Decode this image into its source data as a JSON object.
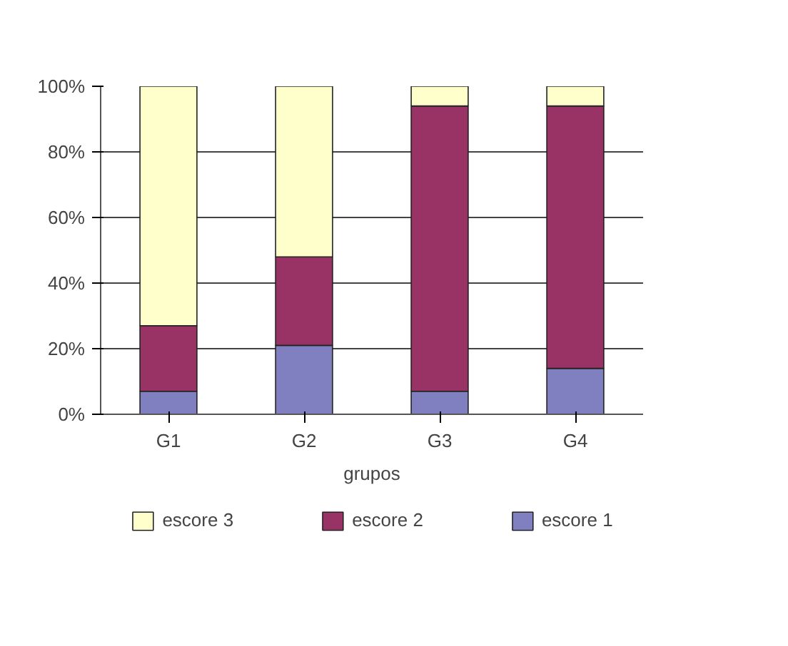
{
  "chart_data": {
    "type": "bar",
    "stacked": true,
    "xlabel": "grupos",
    "categories": [
      "G1",
      "G2",
      "G3",
      "G4"
    ],
    "series": [
      {
        "name": "escore 1",
        "color": "#8080c0",
        "values": [
          7,
          21,
          7,
          14
        ]
      },
      {
        "name": "escore 2",
        "color": "#993366",
        "values": [
          20,
          27,
          87,
          80
        ]
      },
      {
        "name": "escore 3",
        "color": "#ffffcc",
        "values": [
          73,
          52,
          6,
          6
        ]
      }
    ],
    "ylim": [
      0,
      100
    ],
    "yticks": [
      {
        "value": 0,
        "label": "0%"
      },
      {
        "value": 20,
        "label": "20%"
      },
      {
        "value": 40,
        "label": "40%"
      },
      {
        "value": 60,
        "label": "60%"
      },
      {
        "value": 80,
        "label": "80%"
      },
      {
        "value": 100,
        "label": "100%"
      }
    ],
    "grid": "y",
    "legend": "bottom"
  }
}
